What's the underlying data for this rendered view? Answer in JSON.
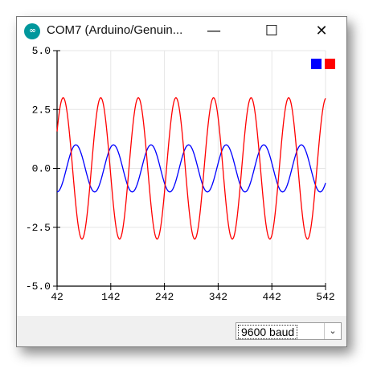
{
  "window": {
    "title": "COM7 (Arduino/Genuin...",
    "icon": "arduino-icon",
    "controls": {
      "minimize": "—",
      "maximize": "☐",
      "close": "✕"
    }
  },
  "chart_data": {
    "type": "line",
    "y_ticks": [
      "5.0",
      "2.5",
      "0.0",
      "-2.5",
      "-5.0"
    ],
    "x_ticks": [
      "42",
      "142",
      "242",
      "342",
      "442",
      "542"
    ],
    "ylim": [
      -5,
      5
    ],
    "xlim": [
      42,
      542
    ],
    "grid": true,
    "legend": {
      "placement": "top-right",
      "swatch_colors": [
        "#0000ff",
        "#ff0000"
      ]
    },
    "series": [
      {
        "color": "#0000ff",
        "amplitude": 1,
        "period": 70,
        "phase_x": 42,
        "function": "-cos"
      },
      {
        "color": "#ff0000",
        "amplitude": 3,
        "period": 70,
        "phase_x": 42,
        "function": "sin"
      }
    ]
  },
  "footer": {
    "baud_rate": "9600 baud"
  }
}
